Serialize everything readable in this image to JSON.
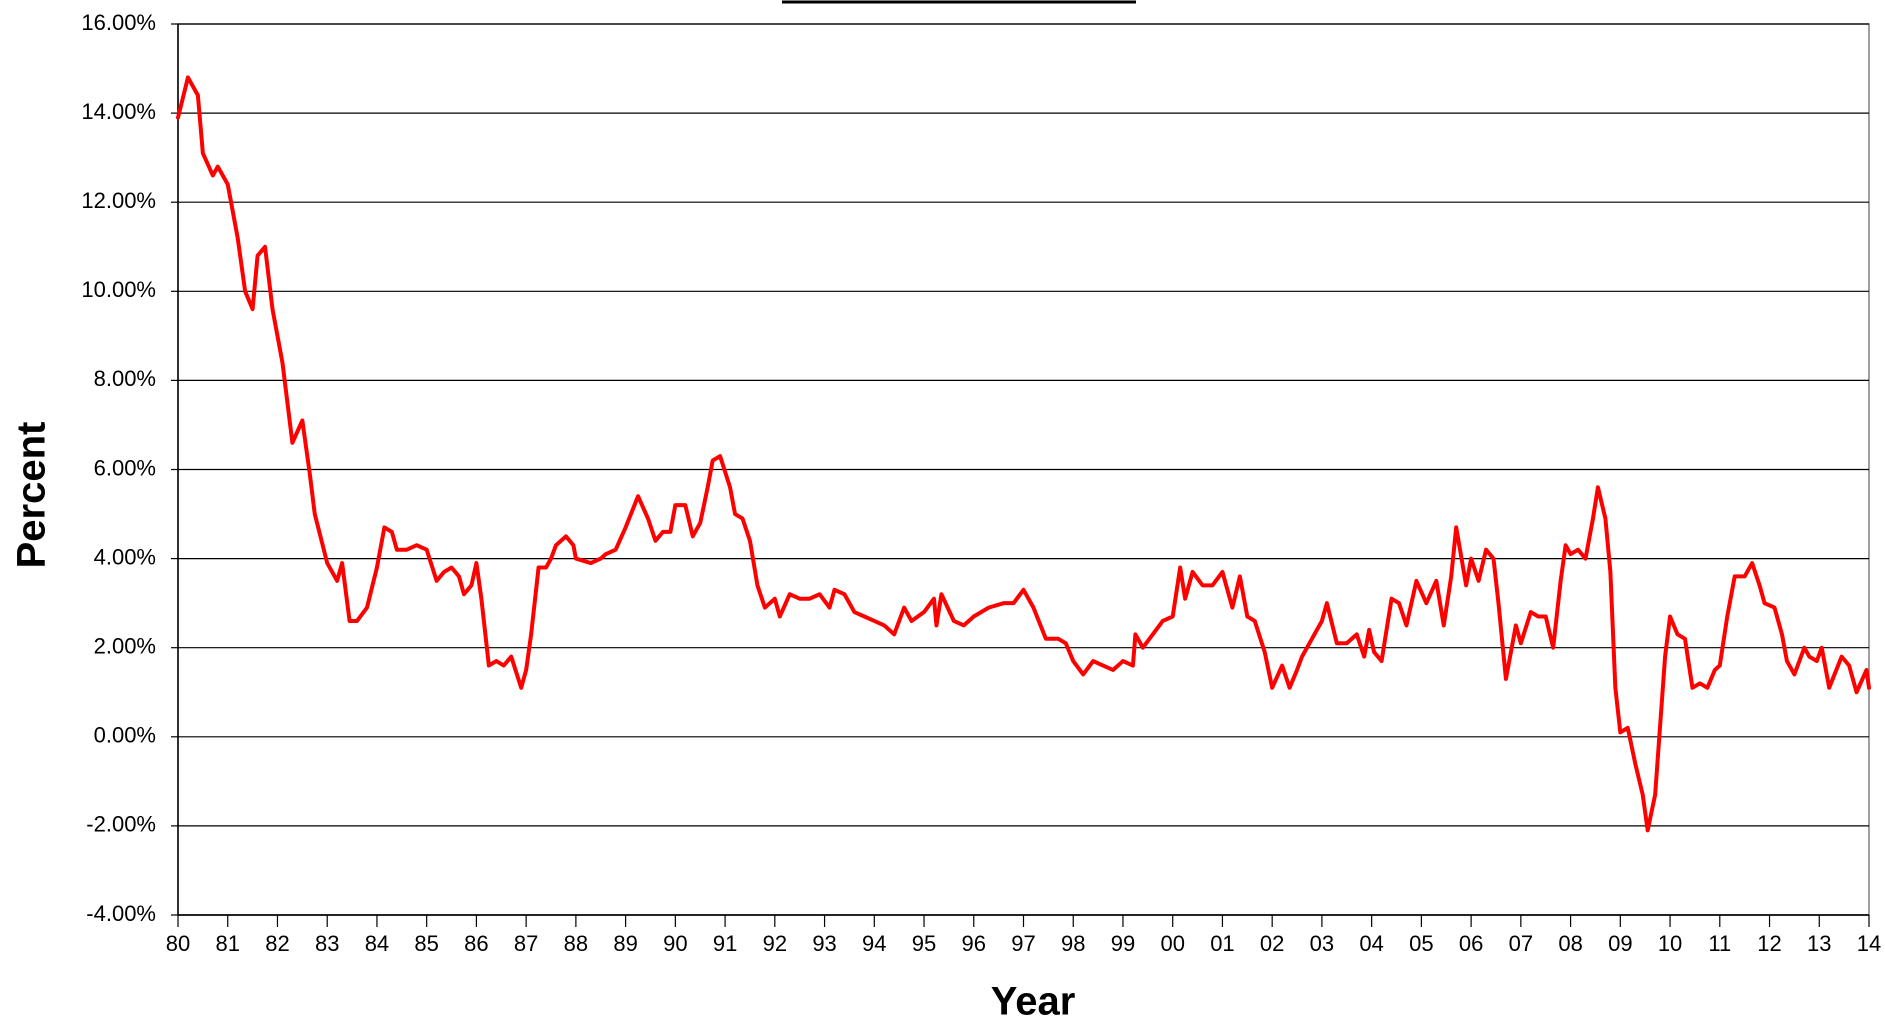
{
  "chart_data": {
    "type": "line",
    "x_label": "Year",
    "y_label": "Percent",
    "color": "#ff0000",
    "grid": true,
    "xlim": [
      1980,
      2014
    ],
    "ylim": [
      -4,
      16
    ],
    "xticks": [
      {
        "value": 1980,
        "label": "80"
      },
      {
        "value": 1981,
        "label": "81"
      },
      {
        "value": 1982,
        "label": "82"
      },
      {
        "value": 1983,
        "label": "83"
      },
      {
        "value": 1984,
        "label": "84"
      },
      {
        "value": 1985,
        "label": "85"
      },
      {
        "value": 1986,
        "label": "86"
      },
      {
        "value": 1987,
        "label": "87"
      },
      {
        "value": 1988,
        "label": "88"
      },
      {
        "value": 1989,
        "label": "89"
      },
      {
        "value": 1990,
        "label": "90"
      },
      {
        "value": 1991,
        "label": "91"
      },
      {
        "value": 1992,
        "label": "92"
      },
      {
        "value": 1993,
        "label": "93"
      },
      {
        "value": 1994,
        "label": "94"
      },
      {
        "value": 1995,
        "label": "95"
      },
      {
        "value": 1996,
        "label": "96"
      },
      {
        "value": 1997,
        "label": "97"
      },
      {
        "value": 1998,
        "label": "98"
      },
      {
        "value": 1999,
        "label": "99"
      },
      {
        "value": 2000,
        "label": "00"
      },
      {
        "value": 2001,
        "label": "01"
      },
      {
        "value": 2002,
        "label": "02"
      },
      {
        "value": 2003,
        "label": "03"
      },
      {
        "value": 2004,
        "label": "04"
      },
      {
        "value": 2005,
        "label": "05"
      },
      {
        "value": 2006,
        "label": "06"
      },
      {
        "value": 2007,
        "label": "07"
      },
      {
        "value": 2008,
        "label": "08"
      },
      {
        "value": 2009,
        "label": "09"
      },
      {
        "value": 2010,
        "label": "10"
      },
      {
        "value": 2011,
        "label": "11"
      },
      {
        "value": 2012,
        "label": "12"
      },
      {
        "value": 2013,
        "label": "13"
      },
      {
        "value": 2014,
        "label": "14"
      }
    ],
    "yticks": [
      {
        "value": -4,
        "label": "-4.00%"
      },
      {
        "value": -2,
        "label": "-2.00%"
      },
      {
        "value": 0,
        "label": "0.00%"
      },
      {
        "value": 2,
        "label": "2.00%"
      },
      {
        "value": 4,
        "label": "4.00%"
      },
      {
        "value": 6,
        "label": "6.00%"
      },
      {
        "value": 8,
        "label": "8.00%"
      },
      {
        "value": 10,
        "label": "10.00%"
      },
      {
        "value": 12,
        "label": "12.00%"
      },
      {
        "value": 14,
        "label": "14.00%"
      },
      {
        "value": 16,
        "label": "16.00%"
      }
    ],
    "x": [
      1980.0,
      1980.2,
      1980.4,
      1980.5,
      1980.7,
      1980.8,
      1981.0,
      1981.2,
      1981.35,
      1981.5,
      1981.6,
      1981.75,
      1981.9,
      1982.1,
      1982.3,
      1982.5,
      1982.65,
      1982.75,
      1983.0,
      1983.2,
      1983.3,
      1983.45,
      1983.6,
      1983.8,
      1984.0,
      1984.15,
      1984.3,
      1984.4,
      1984.6,
      1984.8,
      1985.0,
      1985.2,
      1985.35,
      1985.5,
      1985.65,
      1985.75,
      1985.9,
      1986.0,
      1986.1,
      1986.25,
      1986.4,
      1986.55,
      1986.7,
      1986.9,
      1987.0,
      1987.1,
      1987.25,
      1987.4,
      1987.5,
      1987.6,
      1987.8,
      1987.95,
      1988.0,
      1988.3,
      1988.5,
      1988.6,
      1988.8,
      1989.0,
      1989.25,
      1989.45,
      1989.6,
      1989.75,
      1989.9,
      1990.0,
      1990.2,
      1990.35,
      1990.5,
      1990.65,
      1990.75,
      1990.9,
      1991.1,
      1991.2,
      1991.35,
      1991.5,
      1991.65,
      1991.8,
      1992.0,
      1992.1,
      1992.3,
      1992.5,
      1992.7,
      1992.9,
      1993.1,
      1993.2,
      1993.4,
      1993.6,
      1993.8,
      1994.0,
      1994.2,
      1994.4,
      1994.6,
      1994.75,
      1995.0,
      1995.2,
      1995.25,
      1995.35,
      1995.6,
      1995.8,
      1996.0,
      1996.3,
      1996.6,
      1996.8,
      1997.0,
      1997.2,
      1997.45,
      1997.7,
      1997.85,
      1998.0,
      1998.2,
      1998.4,
      1998.6,
      1998.8,
      1999.0,
      1999.2,
      1999.25,
      1999.4,
      1999.6,
      1999.8,
      2000.0,
      2000.15,
      2000.25,
      2000.4,
      2000.6,
      2000.8,
      2001.0,
      2001.2,
      2001.35,
      2001.5,
      2001.65,
      2001.85,
      2002.0,
      2002.2,
      2002.35,
      2002.5,
      2002.6,
      2002.8,
      2003.0,
      2003.1,
      2003.3,
      2003.5,
      2003.7,
      2003.85,
      2003.95,
      2004.05,
      2004.2,
      2004.4,
      2004.55,
      2004.7,
      2004.9,
      2005.1,
      2005.3,
      2005.45,
      2005.6,
      2005.7,
      2005.9,
      2006.0,
      2006.15,
      2006.3,
      2006.45,
      2006.55,
      2006.7,
      2006.9,
      2007.0,
      2007.2,
      2007.35,
      2007.5,
      2007.65,
      2007.8,
      2007.9,
      2008.0,
      2008.15,
      2008.3,
      2008.45,
      2008.55,
      2008.7,
      2008.8,
      2008.9,
      2009.0,
      2009.15,
      2009.3,
      2009.45,
      2009.55,
      2009.7,
      2009.9,
      2010.0,
      2010.15,
      2010.3,
      2010.45,
      2010.6,
      2010.75,
      2010.9,
      2011.0,
      2011.15,
      2011.3,
      2011.5,
      2011.65,
      2011.8,
      2011.9,
      2012.1,
      2012.25,
      2012.35,
      2012.5,
      2012.7,
      2012.8,
      2012.95,
      2013.05,
      2013.2,
      2013.45,
      2013.6,
      2013.75,
      2013.95,
      2014.0
    ],
    "values": [
      13.9,
      14.8,
      14.4,
      13.1,
      12.6,
      12.8,
      12.4,
      11.2,
      10.0,
      9.6,
      10.8,
      11.0,
      9.6,
      8.4,
      6.6,
      7.1,
      5.9,
      5.0,
      3.9,
      3.5,
      3.9,
      2.6,
      2.6,
      2.9,
      3.8,
      4.7,
      4.6,
      4.2,
      4.2,
      4.3,
      4.2,
      3.5,
      3.7,
      3.8,
      3.6,
      3.2,
      3.4,
      3.9,
      3.1,
      1.6,
      1.7,
      1.6,
      1.8,
      1.1,
      1.5,
      2.3,
      3.8,
      3.8,
      4.0,
      4.3,
      4.5,
      4.3,
      4.0,
      3.9,
      4.0,
      4.1,
      4.2,
      4.7,
      5.4,
      4.9,
      4.4,
      4.6,
      4.6,
      5.2,
      5.2,
      4.5,
      4.8,
      5.6,
      6.2,
      6.3,
      5.6,
      5.0,
      4.9,
      4.4,
      3.4,
      2.9,
      3.1,
      2.7,
      3.2,
      3.1,
      3.1,
      3.2,
      2.9,
      3.3,
      3.2,
      2.8,
      2.7,
      2.6,
      2.5,
      2.3,
      2.9,
      2.6,
      2.8,
      3.1,
      2.5,
      3.2,
      2.6,
      2.5,
      2.7,
      2.9,
      3.0,
      3.0,
      3.3,
      2.9,
      2.2,
      2.2,
      2.1,
      1.7,
      1.4,
      1.7,
      1.6,
      1.5,
      1.7,
      1.6,
      2.3,
      2.0,
      2.3,
      2.6,
      2.7,
      3.8,
      3.1,
      3.7,
      3.4,
      3.4,
      3.7,
      2.9,
      3.6,
      2.7,
      2.6,
      1.9,
      1.1,
      1.6,
      1.1,
      1.5,
      1.8,
      2.2,
      2.6,
      3.0,
      2.1,
      2.1,
      2.3,
      1.8,
      2.4,
      1.9,
      1.7,
      3.1,
      3.0,
      2.5,
      3.5,
      3.0,
      3.5,
      2.5,
      3.6,
      4.7,
      3.4,
      4.0,
      3.5,
      4.2,
      4.0,
      3.0,
      1.3,
      2.5,
      2.1,
      2.8,
      2.7,
      2.7,
      2.0,
      3.5,
      4.3,
      4.1,
      4.2,
      4.0,
      4.9,
      5.6,
      4.9,
      3.7,
      1.1,
      0.1,
      0.2,
      -0.6,
      -1.3,
      -2.1,
      -1.3,
      1.8,
      2.7,
      2.3,
      2.2,
      1.1,
      1.2,
      1.1,
      1.5,
      1.6,
      2.7,
      3.6,
      3.6,
      3.9,
      3.4,
      3.0,
      2.9,
      2.3,
      1.7,
      1.4,
      2.0,
      1.8,
      1.7,
      2.0,
      1.1,
      1.8,
      1.6,
      1.0,
      1.5,
      1.1
    ]
  }
}
